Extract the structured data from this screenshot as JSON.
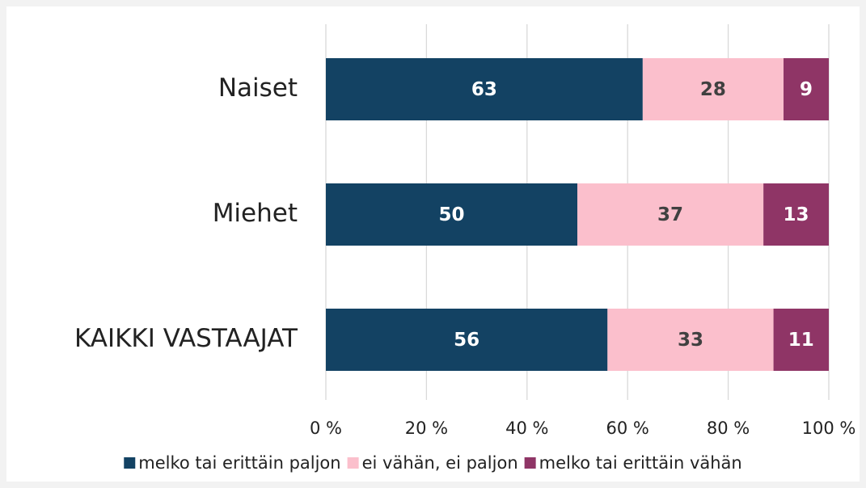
{
  "chart_data": {
    "type": "stacked-bar-horizontal",
    "categories": [
      "Naiset",
      "Miehet",
      "KAIKKI VASTAAJAT"
    ],
    "series": [
      {
        "name": "melko tai erittäin paljon",
        "color": "#134263",
        "label_color": "#ffffff",
        "values": [
          63,
          50,
          56
        ]
      },
      {
        "name": "ei vähän, ei paljon",
        "color": "#fbbfcc",
        "label_color": "#404040",
        "values": [
          28,
          37,
          33
        ]
      },
      {
        "name": "melko tai erittäin vähän",
        "color": "#8f3566",
        "label_color": "#ffffff",
        "values": [
          9,
          13,
          11
        ]
      }
    ],
    "xlim": [
      0,
      100
    ],
    "xticks": [
      {
        "value": 0,
        "label": "0 %"
      },
      {
        "value": 20,
        "label": "20 %"
      },
      {
        "value": 40,
        "label": "40 %"
      },
      {
        "value": 60,
        "label": "60 %"
      },
      {
        "value": 80,
        "label": "80 %"
      },
      {
        "value": 100,
        "label": "100 %"
      }
    ],
    "grid": true,
    "legend": "bottom"
  }
}
